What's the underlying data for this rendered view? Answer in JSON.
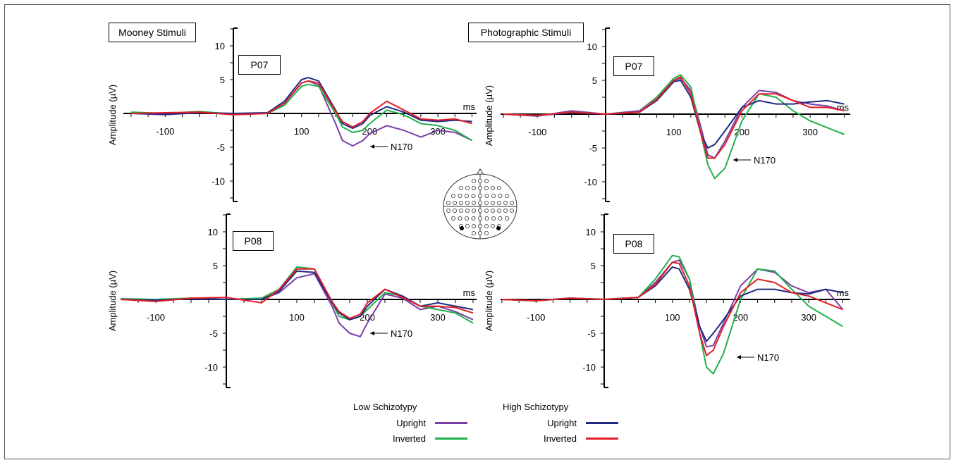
{
  "stimulus_titles": {
    "mooney": "Mooney Stimuli",
    "photographic": "Photographic Stimuli"
  },
  "legend": {
    "low_header": "Low Schizotypy",
    "high_header": "High Schizotypy",
    "items": [
      {
        "group": "low",
        "label": "Upright",
        "color": "#7b3fa8"
      },
      {
        "group": "low",
        "label": "Inverted",
        "color": "#21b04a"
      },
      {
        "group": "high",
        "label": "Upright",
        "color": "#1f2a80"
      },
      {
        "group": "high",
        "label": "Inverted",
        "color": "#e31f26"
      }
    ]
  },
  "head_map": {
    "icon": "electrode-montage-head-icon"
  },
  "chart_data": [
    {
      "type": "line",
      "stimulus": "Mooney Stimuli",
      "electrode": "P07",
      "xlabel": "ms",
      "ylabel": "Amplitude (µV)",
      "xlim": [
        -150,
        350
      ],
      "ylim": [
        -12,
        12
      ],
      "x_ticks": [
        -100,
        100,
        200,
        300
      ],
      "y_ticks": [
        10,
        5,
        -5,
        -10
      ],
      "annotation": "N170",
      "annotation_at": [
        150,
        -5
      ],
      "series": [
        {
          "group": "Low Schizotypy",
          "condition": "Upright",
          "color": "#7b3fa8",
          "x": [
            -150,
            -100,
            -50,
            0,
            50,
            75,
            100,
            110,
            125,
            150,
            160,
            175,
            190,
            200,
            225,
            250,
            275,
            300,
            325,
            350
          ],
          "values": [
            0,
            -0.2,
            0.1,
            0,
            0,
            1.5,
            4.5,
            4.8,
            4.2,
            -1.5,
            -4,
            -4.8,
            -4,
            -3,
            -1.8,
            -2.5,
            -3.5,
            -2.5,
            -2.8,
            -4
          ]
        },
        {
          "group": "Low Schizotypy",
          "condition": "Inverted",
          "color": "#21b04a",
          "x": [
            -150,
            -100,
            -50,
            0,
            50,
            75,
            100,
            110,
            125,
            150,
            160,
            175,
            190,
            200,
            225,
            250,
            275,
            300,
            325,
            350
          ],
          "values": [
            0.2,
            0,
            0.3,
            -0.1,
            0,
            1.2,
            4,
            4.3,
            4,
            0,
            -2,
            -2.8,
            -2.5,
            -1.5,
            0.5,
            -0.2,
            -1.5,
            -1.8,
            -2.5,
            -4
          ]
        },
        {
          "group": "High Schizotypy",
          "condition": "Upright",
          "color": "#1f2a80",
          "x": [
            -150,
            -100,
            -50,
            0,
            50,
            75,
            100,
            110,
            125,
            150,
            160,
            175,
            190,
            200,
            225,
            250,
            275,
            300,
            325,
            350
          ],
          "values": [
            0,
            -0.1,
            0.1,
            0,
            0.1,
            1.8,
            5,
            5.3,
            4.8,
            0.5,
            -1.5,
            -2.2,
            -1.5,
            -0.3,
            1,
            0.2,
            -1,
            -1.2,
            -1,
            -1.2
          ]
        },
        {
          "group": "High Schizotypy",
          "condition": "Inverted",
          "color": "#e31f26",
          "x": [
            -150,
            -100,
            -50,
            0,
            50,
            75,
            100,
            110,
            125,
            150,
            160,
            175,
            190,
            200,
            225,
            250,
            275,
            300,
            325,
            350
          ],
          "values": [
            0,
            0.1,
            0.2,
            -0.2,
            0,
            1.5,
            4.5,
            4.8,
            4.5,
            0.3,
            -1.2,
            -2,
            -1.2,
            0,
            1.8,
            0.5,
            -0.8,
            -1,
            -0.8,
            -1.5
          ]
        }
      ]
    },
    {
      "type": "line",
      "stimulus": "Mooney Stimuli",
      "electrode": "P08",
      "xlabel": "ms",
      "ylabel": "Amplitude (µV)",
      "xlim": [
        -150,
        350
      ],
      "ylim": [
        -12,
        12
      ],
      "x_ticks": [
        -100,
        100,
        200,
        300
      ],
      "y_ticks": [
        10,
        5,
        -5,
        -10
      ],
      "annotation": "N170",
      "annotation_at": [
        155,
        -5
      ],
      "series": [
        {
          "group": "Low Schizotypy",
          "condition": "Upright",
          "color": "#7b3fa8",
          "x": [
            -150,
            -100,
            -50,
            0,
            50,
            75,
            100,
            125,
            150,
            160,
            175,
            190,
            200,
            225,
            250,
            275,
            300,
            325,
            350
          ],
          "values": [
            0,
            -0.2,
            0.1,
            0,
            0,
            1,
            3.2,
            3.8,
            -1,
            -3.5,
            -5,
            -5.5,
            -3.5,
            0.8,
            0.2,
            -1.5,
            -1,
            -1.8,
            -3
          ]
        },
        {
          "group": "Low Schizotypy",
          "condition": "Inverted",
          "color": "#21b04a",
          "x": [
            -150,
            -100,
            -50,
            0,
            50,
            75,
            100,
            125,
            150,
            160,
            175,
            190,
            200,
            225,
            250,
            275,
            300,
            325,
            350
          ],
          "values": [
            0.1,
            0,
            0.2,
            0,
            0.2,
            1.5,
            4.8,
            4.5,
            -0.5,
            -2.5,
            -3,
            -2.5,
            -1.5,
            1,
            0.5,
            -1,
            -1.5,
            -2,
            -3.5
          ]
        },
        {
          "group": "High Schizotypy",
          "condition": "Upright",
          "color": "#1f2a80",
          "x": [
            -150,
            -100,
            -50,
            0,
            50,
            75,
            100,
            125,
            150,
            160,
            175,
            190,
            200,
            225,
            250,
            275,
            300,
            325,
            350
          ],
          "values": [
            0,
            -0.1,
            0.1,
            0,
            0,
            1.2,
            4.2,
            4,
            -0.5,
            -2,
            -3,
            -2.5,
            -1,
            1.5,
            0.5,
            -1,
            -0.5,
            -1,
            -1.5
          ]
        },
        {
          "group": "High Schizotypy",
          "condition": "Inverted",
          "color": "#e31f26",
          "x": [
            -150,
            -100,
            -50,
            0,
            50,
            75,
            100,
            125,
            150,
            160,
            175,
            190,
            200,
            225,
            250,
            275,
            300,
            325,
            350
          ],
          "values": [
            0,
            -0.3,
            0.2,
            0.3,
            -0.5,
            1.5,
            4.5,
            4.5,
            -0.3,
            -1.8,
            -2.8,
            -2.2,
            -0.5,
            1.5,
            0.3,
            -1,
            -1,
            -1.2,
            -2
          ]
        }
      ]
    },
    {
      "type": "line",
      "stimulus": "Photographic Stimuli",
      "electrode": "P07",
      "xlabel": "ms",
      "ylabel": "Amplitude (µV)",
      "xlim": [
        -150,
        350
      ],
      "ylim": [
        -12,
        12
      ],
      "x_ticks": [
        -100,
        100,
        200,
        300
      ],
      "y_ticks": [
        10,
        5,
        -5,
        -10
      ],
      "annotation": "N170",
      "annotation_at": [
        180,
        -7
      ],
      "series": [
        {
          "group": "Low Schizotypy",
          "condition": "Upright",
          "color": "#7b3fa8",
          "x": [
            -150,
            -100,
            -50,
            0,
            50,
            75,
            100,
            110,
            125,
            140,
            150,
            160,
            175,
            200,
            225,
            250,
            275,
            300,
            325,
            350
          ],
          "values": [
            0,
            -0.3,
            0.5,
            0,
            0.5,
            2.5,
            5,
            5.3,
            3.5,
            -2,
            -6,
            -6.5,
            -4,
            1,
            3.5,
            3.2,
            2,
            1.5,
            1.2,
            0.5
          ]
        },
        {
          "group": "Low Schizotypy",
          "condition": "Inverted",
          "color": "#21b04a",
          "x": [
            -150,
            -100,
            -50,
            0,
            50,
            75,
            100,
            110,
            125,
            140,
            150,
            160,
            175,
            200,
            225,
            250,
            275,
            300,
            325,
            350
          ],
          "values": [
            0,
            -0.2,
            0.3,
            0,
            0.3,
            2.5,
            5.3,
            5.8,
            4,
            -3,
            -7.5,
            -9.5,
            -8,
            -1,
            3,
            2.5,
            0.5,
            -1,
            -2,
            -3
          ]
        },
        {
          "group": "High Schizotypy",
          "condition": "Upright",
          "color": "#1f2a80",
          "x": [
            -150,
            -100,
            -50,
            0,
            50,
            75,
            100,
            110,
            125,
            140,
            150,
            160,
            175,
            200,
            225,
            250,
            275,
            300,
            325,
            350
          ],
          "values": [
            0,
            -0.2,
            0.2,
            0,
            0.3,
            2,
            4.8,
            5,
            2.5,
            -3,
            -5,
            -4.5,
            -2.5,
            1,
            2,
            1.5,
            1.5,
            1.8,
            2,
            1.5
          ]
        },
        {
          "group": "High Schizotypy",
          "condition": "Inverted",
          "color": "#e31f26",
          "x": [
            -150,
            -100,
            -50,
            0,
            50,
            75,
            100,
            110,
            125,
            140,
            150,
            160,
            175,
            200,
            225,
            250,
            275,
            300,
            325,
            350
          ],
          "values": [
            0,
            -0.2,
            0.3,
            0,
            0.3,
            2.2,
            5,
            5.5,
            3,
            -3,
            -6.5,
            -6.5,
            -4.5,
            0.5,
            3,
            3,
            2,
            1,
            1,
            0.5
          ]
        }
      ]
    },
    {
      "type": "line",
      "stimulus": "Photographic Stimuli",
      "electrode": "P08",
      "xlabel": "ms",
      "ylabel": "Amplitude (µV)",
      "xlim": [
        -150,
        350
      ],
      "ylim": [
        -12,
        12
      ],
      "x_ticks": [
        -100,
        100,
        200,
        300
      ],
      "y_ticks": [
        10,
        5,
        -5,
        -10
      ],
      "annotation": "N170",
      "annotation_at": [
        190,
        -8.5
      ],
      "series": [
        {
          "group": "Low Schizotypy",
          "condition": "Upright",
          "color": "#7b3fa8",
          "x": [
            -150,
            -100,
            -50,
            0,
            50,
            75,
            100,
            110,
            125,
            140,
            150,
            160,
            175,
            200,
            225,
            250,
            275,
            300,
            325,
            350
          ],
          "values": [
            0,
            -0.2,
            0.2,
            0,
            0.3,
            2.5,
            5.5,
            5.8,
            3,
            -4,
            -7,
            -6.8,
            -3.5,
            2,
            4.5,
            4,
            2,
            1,
            1.5,
            -1.5
          ]
        },
        {
          "group": "Low Schizotypy",
          "condition": "Inverted",
          "color": "#21b04a",
          "x": [
            -150,
            -100,
            -50,
            0,
            50,
            75,
            100,
            110,
            125,
            140,
            150,
            160,
            175,
            200,
            225,
            250,
            275,
            300,
            325,
            350
          ],
          "values": [
            0,
            -0.2,
            0.2,
            0,
            0.3,
            3,
            6.5,
            6.3,
            3,
            -5,
            -10,
            -11,
            -8,
            0,
            4.5,
            4.2,
            1.5,
            -1,
            -2.5,
            -4
          ]
        },
        {
          "group": "High Schizotypy",
          "condition": "Upright",
          "color": "#1f2a80",
          "x": [
            -150,
            -100,
            -50,
            0,
            50,
            75,
            100,
            110,
            125,
            140,
            150,
            160,
            175,
            200,
            225,
            250,
            275,
            300,
            325,
            350
          ],
          "values": [
            0,
            -0.2,
            0.2,
            0,
            0.3,
            2,
            4.8,
            4.5,
            1.5,
            -4,
            -6.2,
            -5,
            -3,
            0.5,
            1.5,
            1.5,
            1,
            0.8,
            1.5,
            1
          ]
        },
        {
          "group": "High Schizotypy",
          "condition": "Inverted",
          "color": "#e31f26",
          "x": [
            -150,
            -100,
            -50,
            0,
            50,
            75,
            100,
            110,
            125,
            140,
            150,
            160,
            175,
            200,
            225,
            250,
            275,
            300,
            325,
            350
          ],
          "values": [
            0,
            -0.2,
            0.2,
            0,
            0.3,
            2.2,
            5.5,
            5.3,
            2,
            -5,
            -8.3,
            -7.5,
            -4,
            1,
            3,
            2.5,
            1,
            0.5,
            -0.5,
            -1.5
          ]
        }
      ]
    }
  ]
}
